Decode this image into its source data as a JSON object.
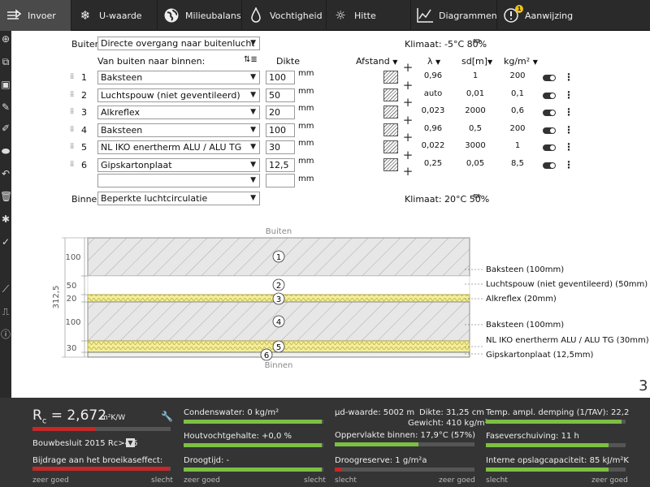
{
  "tabs": [
    {
      "label": "Invoer",
      "icon": "layers-icon",
      "active": true
    },
    {
      "label": "U-waarde",
      "icon": "snowflake-icon"
    },
    {
      "label": "Milieubalans",
      "icon": "globe-icon"
    },
    {
      "label": "Vochtigheid",
      "icon": "droplet-icon"
    },
    {
      "label": "Hitte",
      "icon": "sun-icon"
    },
    {
      "label": "Diagrammen",
      "icon": "line-chart-icon"
    },
    {
      "label": "Aanwijzing",
      "icon": "alert-icon",
      "badge": "1"
    }
  ],
  "form": {
    "buiten_label": "Buiten:",
    "buiten_value": "Directe overgang naar buitenlucht",
    "klimaat_buiten": "Klimaat: -5°C 80%",
    "header_layers": "Van buiten naar binnen:",
    "header_dikte": "Dikte",
    "header_afstand": "Afstand",
    "header_lambda": "λ",
    "header_sd": "sd[m]",
    "header_kgm2": "kg/m²",
    "unit": "mm",
    "binnen_label": "Binnen:",
    "binnen_value": "Beperkte luchtcirculatie",
    "klimaat_binnen": "Klimaat: 20°C 50%"
  },
  "layers": [
    {
      "nr": "1",
      "material": "Baksteen",
      "thickness": "100",
      "lambda": "0,96",
      "sd": "1",
      "kgm2": "200"
    },
    {
      "nr": "2",
      "material": "Luchtspouw (niet geventileerd)",
      "thickness": "50",
      "lambda": "auto",
      "sd": "0,01",
      "kgm2": "0,1"
    },
    {
      "nr": "3",
      "material": "Alkreflex",
      "thickness": "20",
      "lambda": "0,023",
      "sd": "2000",
      "kgm2": "0,6"
    },
    {
      "nr": "4",
      "material": "Baksteen",
      "thickness": "100",
      "lambda": "0,96",
      "sd": "0,5",
      "kgm2": "200"
    },
    {
      "nr": "5",
      "material": "NL IKO enertherm ALU / ALU TG",
      "thickness": "30",
      "lambda": "0,022",
      "sd": "3000",
      "kgm2": "1"
    },
    {
      "nr": "6",
      "material": "Gipskartonplaat",
      "thickness": "12,5",
      "lambda": "0,25",
      "sd": "0,05",
      "kgm2": "8,5"
    }
  ],
  "diagram": {
    "top_label": "Buiten",
    "bottom_label": "Binnen",
    "total": "312,5",
    "dims": [
      "100",
      "50",
      "20",
      "100",
      "30"
    ],
    "annotations": [
      "Baksteen (100mm)",
      "Luchtspouw (niet geventileerd) (50mm)",
      "Alkreflex (20mm)",
      "Baksteen (100mm)",
      "NL IKO enertherm ALU / ALU TG (30mm)",
      "Gipskartonplaat (12,5mm)"
    ],
    "page_number": "3"
  },
  "results": {
    "rc_symbol": "R",
    "rc_sub": "c",
    "rc_value": "= 2,672",
    "rc_unit": "m²K/W",
    "bouwbesluit": "Bouwbesluit 2015 Rc>4.5",
    "broeikas": "Bijdrage aan het broeikaseffect:",
    "condenswater": "Condenswater: 0 kg/m²",
    "houtvocht": "Houtvochtgehalte: +0,0 %",
    "droogtijd": "Droogtijd: -",
    "ud": "μd-waarde: 5002 m",
    "dikte": "Dikte: 31,25 cm",
    "gewicht": "Gewicht: 410 kg/m²",
    "oppervlakte": "Oppervlakte binnen: 17,9°C (57%)",
    "droogreserve": "Droogreserve: 1 g/m²a",
    "temp_ampl": "Temp. ampl. demping (1/TAV): 22,2",
    "faseverschuiving": "Faseverschuiving: 11 h",
    "opslag": "Interne opslagcapaciteit: 85 kJ/m²K",
    "zeer_goed": "zeer goed",
    "slecht": "slecht",
    "bar_rc": 0.45,
    "bar_broeikas": 0.99,
    "bar_condens": 0.99,
    "bar_houtvocht": 0.99,
    "bar_droogtijd": 0.99,
    "bar_oppervlakte": 0.6,
    "bar_droogreserve": 0.05,
    "bar_temp": 0.97,
    "bar_fase": 0.88,
    "bar_opslag": 0.88,
    "color_good": "#7cc043",
    "color_bad": "#c62828"
  }
}
